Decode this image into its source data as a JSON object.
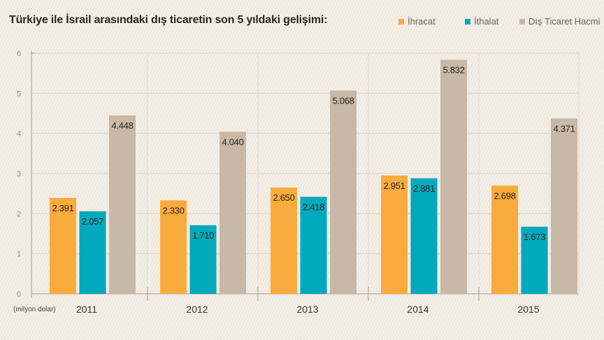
{
  "chart_data": {
    "type": "bar",
    "title": "Türkiye ile İsrail arasındaki dış ticaretin son 5 yıldaki gelişimi:",
    "ylabel": "(milyon dolar)",
    "categories": [
      "2011",
      "2012",
      "2013",
      "2014",
      "2015"
    ],
    "ylim": [
      0,
      6
    ],
    "yticks": [
      "0",
      "1",
      "2",
      "3",
      "4",
      "5",
      "6"
    ],
    "grid": true,
    "legend_position": "top-right",
    "series": [
      {
        "name": "İhracat",
        "color": "#f9ab3d",
        "values": [
          2.391,
          2.33,
          2.65,
          2.951,
          2.698
        ],
        "labels": [
          "2.391",
          "2.330",
          "2.650",
          "2.951",
          "2.698"
        ]
      },
      {
        "name": "İthalat",
        "color": "#00a9bb",
        "values": [
          2.057,
          1.71,
          2.418,
          2.881,
          1.673
        ],
        "labels": [
          "2.057",
          "1.710",
          "2.418",
          "2.881",
          "1.673"
        ]
      },
      {
        "name": "Dış Ticaret Hacmi",
        "color": "#c8b9a6",
        "values": [
          4.448,
          4.04,
          5.068,
          5.832,
          4.371
        ],
        "labels": [
          "4.448",
          "4.040",
          "5.068",
          "5.832",
          "4.371"
        ]
      }
    ]
  }
}
